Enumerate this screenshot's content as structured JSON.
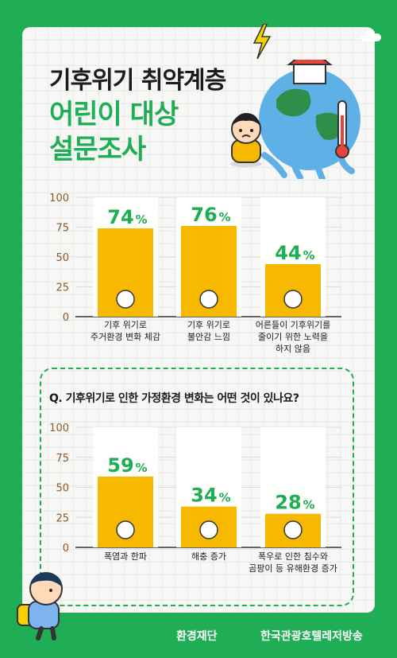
{
  "title": {
    "line1": "기후위기 취약계층",
    "line2": "어린이 대상",
    "line3": "설문조사"
  },
  "colors": {
    "green": "#1fae55",
    "bar": "#f7b800",
    "axis": "#8a5a2b"
  },
  "chart_data": [
    {
      "type": "bar",
      "title": "",
      "ylim": [
        0,
        100
      ],
      "yticks": [
        0,
        25,
        50,
        75,
        100
      ],
      "categories": [
        [
          "기후 위기로",
          "주거환경 변화 체감"
        ],
        [
          "기후 위기로",
          "불안감 느낌"
        ],
        [
          "어른들이 기후위기를",
          "줄이기 위한 노력을",
          "하지 않음"
        ]
      ],
      "values": [
        74,
        76,
        44
      ],
      "unit": "%",
      "icons": [
        "house-icon",
        "worried-face-icon",
        "thumbs-down-phone-icon"
      ]
    },
    {
      "type": "bar",
      "title": "Q. 기후위기로 인한 가정환경 변화는 어떤 것이 있나요?",
      "ylim": [
        0,
        100
      ],
      "yticks": [
        0,
        25,
        50,
        75,
        100
      ],
      "categories": [
        [
          "폭염과 한파"
        ],
        [
          "해충 증가"
        ],
        [
          "폭우로 인한 침수와",
          "곰팡이 등 유해환경 증가"
        ]
      ],
      "values": [
        59,
        34,
        28
      ],
      "unit": "%",
      "icons": [
        "thermometer-icon",
        "bug-icon",
        "mold-magnifier-icon"
      ]
    }
  ],
  "footer": {
    "org1": "환경재단",
    "org2": "한국관광호텔레저방송"
  }
}
